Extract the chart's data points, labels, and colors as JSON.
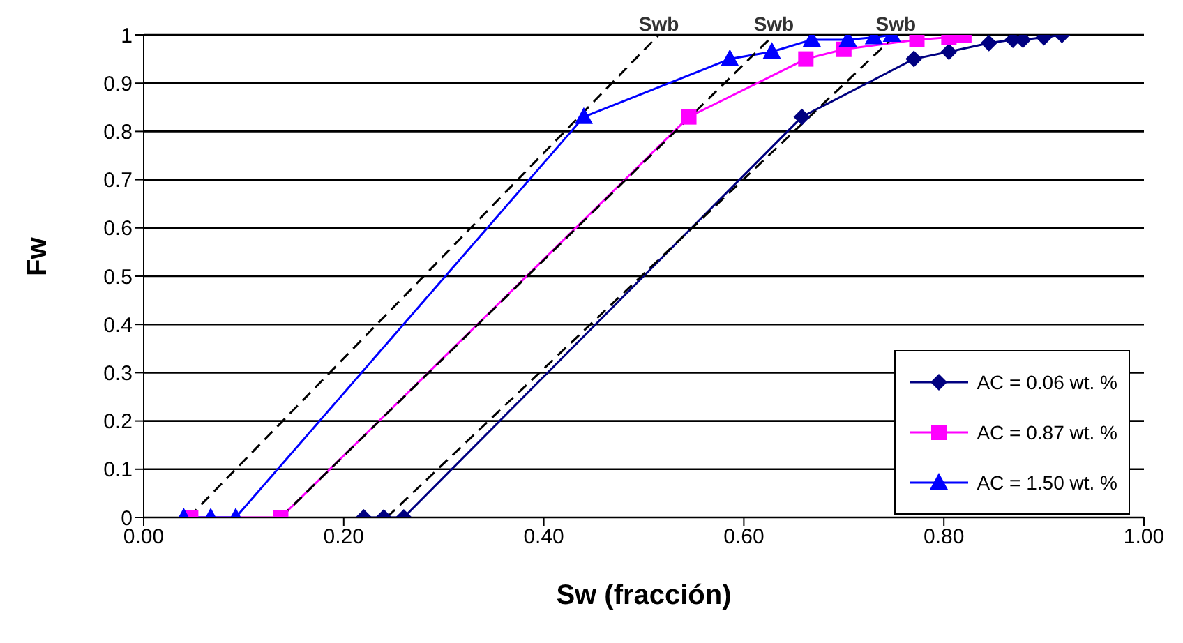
{
  "chart_data": {
    "type": "line",
    "xlabel": "Sw (fracción)",
    "ylabel": "Fw",
    "xlim": [
      0,
      1
    ],
    "ylim": [
      0,
      1
    ],
    "xticks": [
      {
        "value": 0,
        "label": "0.00"
      },
      {
        "value": 0.2,
        "label": "0.20"
      },
      {
        "value": 0.4,
        "label": "0.40"
      },
      {
        "value": 0.6,
        "label": "0.60"
      },
      {
        "value": 0.8,
        "label": "0.80"
      },
      {
        "value": 1,
        "label": "1.00"
      }
    ],
    "yticks": [
      0,
      0.1,
      0.2,
      0.3,
      0.4,
      0.5,
      0.6,
      0.7,
      0.8,
      0.9,
      1
    ],
    "grid": "y",
    "legend": "bottom right",
    "series": [
      {
        "name": "AC = 0.06 wt. %",
        "color": "#000080",
        "marker": "diamond",
        "x": [
          0.22,
          0.24,
          0.26,
          0.658,
          0.77,
          0.805,
          0.845,
          0.869,
          0.879,
          0.9,
          0.918
        ],
        "values": [
          0,
          0,
          0,
          0.83,
          0.95,
          0.965,
          0.983,
          0.99,
          0.99,
          0.995,
          1
        ]
      },
      {
        "name": "AC = 0.87 wt. %",
        "color": "#ff00ff",
        "marker": "square",
        "x": [
          0.047,
          0.137,
          0.545,
          0.662,
          0.7,
          0.773,
          0.805,
          0.82
        ],
        "values": [
          0,
          0,
          0.83,
          0.95,
          0.97,
          0.99,
          0.995,
          1
        ]
      },
      {
        "name": "AC = 1.50 wt. %",
        "color": "#0000ff",
        "marker": "triangle",
        "x": [
          0.04,
          0.067,
          0.092,
          0.44,
          0.586,
          0.628,
          0.668,
          0.704,
          0.73,
          0.748
        ],
        "values": [
          0,
          0,
          0,
          0.83,
          0.95,
          0.965,
          0.99,
          0.99,
          0.995,
          1
        ]
      },
      {
        "color": "#000000",
        "marker": "none",
        "line_style": "dashed",
        "x": [
          0.045,
          0.515
        ],
        "values": [
          0,
          1
        ]
      },
      {
        "color": "#000000",
        "marker": "none",
        "line_style": "dashed",
        "x": [
          0.137,
          0.63
        ],
        "values": [
          0,
          1
        ]
      },
      {
        "color": "#000000",
        "marker": "none",
        "line_style": "dashed",
        "x": [
          0.243,
          0.752
        ],
        "values": [
          0,
          1
        ]
      }
    ],
    "annotations": [
      {
        "text": "Swb",
        "x": 0.515,
        "y": 1
      },
      {
        "text": "Swb",
        "x": 0.63,
        "y": 1
      },
      {
        "text": "Swb",
        "x": 0.752,
        "y": 1
      }
    ]
  }
}
